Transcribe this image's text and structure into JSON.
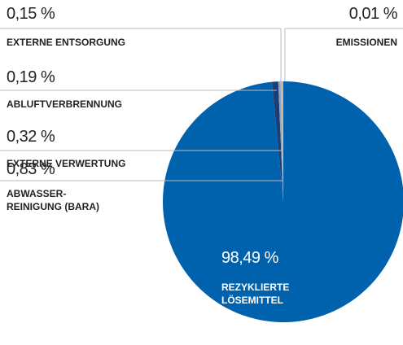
{
  "chart_data": {
    "type": "pie",
    "categories": [
      "REZYKLIERTE\nLÖSEMITTEL",
      "ABWASSER-\nREINIGUNG (BARA)",
      "EXTERNE VERWERTUNG",
      "ABLUFTVERBRENNUNG",
      "EXTERNE ENTSORGUNG",
      "EMISSIONEN"
    ],
    "values": [
      98.49,
      0.83,
      0.32,
      0.19,
      0.15,
      0.01
    ],
    "value_labels": [
      "98,49 %",
      "0,83 %",
      "0,32 %",
      "0,19 %",
      "0,15 %",
      "0,01 %"
    ],
    "colors": [
      "#0061ad",
      "#1b3f75",
      "#8fa6c4",
      "#c8b9a3",
      "#e2a073",
      "#f2cda8"
    ]
  }
}
